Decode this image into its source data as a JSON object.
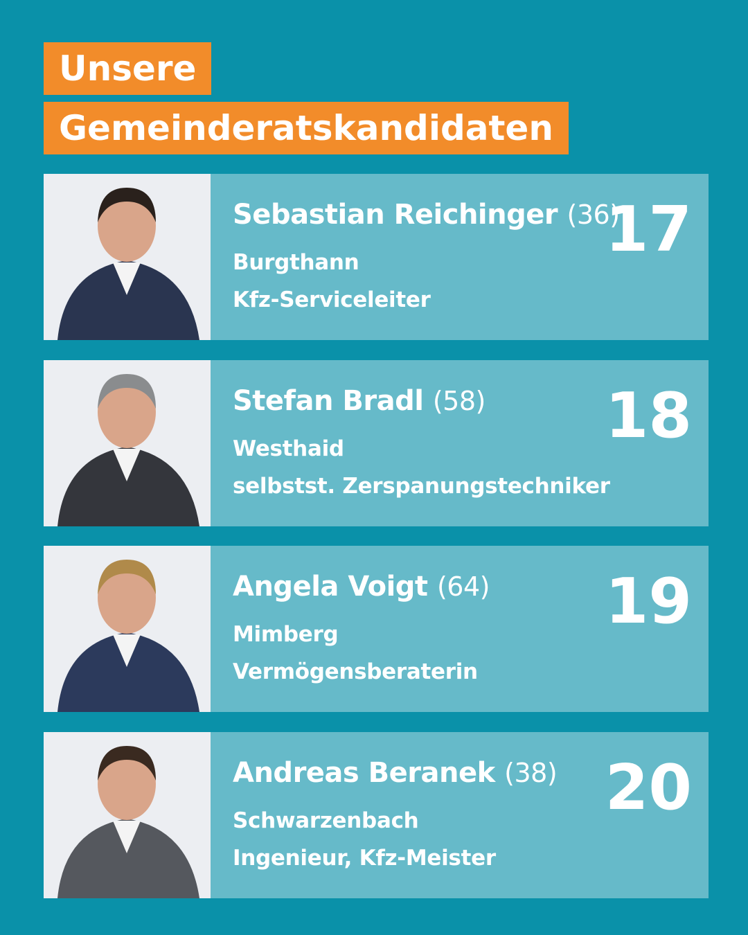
{
  "header": {
    "title_lines": [
      "Unsere",
      "Gemeinderatskandidaten"
    ]
  },
  "candidates": [
    {
      "name": "Sebastian Reichinger",
      "age": "(36)",
      "place": "Burgthann",
      "occupation": "Kfz-Serviceleiter",
      "number": "17"
    },
    {
      "name": "Stefan Bradl",
      "age": "(58)",
      "place": "Westhaid",
      "occupation": "selbstst. Zerspanungstechniker",
      "number": "18"
    },
    {
      "name": "Angela Voigt",
      "age": "(64)",
      "place": "Mimberg",
      "occupation": "Vermögensberaterin",
      "number": "19"
    },
    {
      "name": "Andreas Beranek",
      "age": "(38)",
      "place": "Schwarzenbach",
      "occupation": "Ingenieur, Kfz-Meister",
      "number": "20"
    }
  ]
}
